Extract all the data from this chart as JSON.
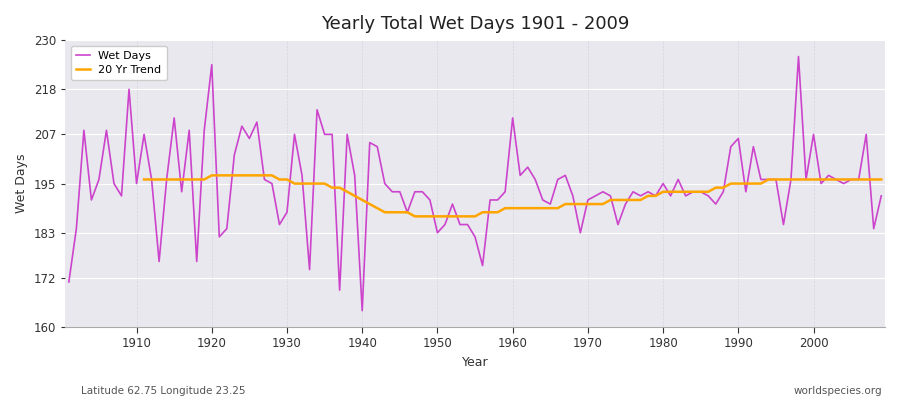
{
  "title": "Yearly Total Wet Days 1901 - 2009",
  "xlabel": "Year",
  "ylabel": "Wet Days",
  "footnote_left": "Latitude 62.75 Longitude 23.25",
  "footnote_right": "worldspecies.org",
  "ylim": [
    160,
    230
  ],
  "yticks": [
    160,
    172,
    183,
    195,
    207,
    218,
    230
  ],
  "plot_bg_color": "#e8e8ee",
  "fig_bg_color": "#ffffff",
  "line_color": "#cc44cc",
  "trend_color": "#ffa500",
  "years": [
    1901,
    1902,
    1903,
    1904,
    1905,
    1906,
    1907,
    1908,
    1909,
    1910,
    1911,
    1912,
    1913,
    1914,
    1915,
    1916,
    1917,
    1918,
    1919,
    1920,
    1921,
    1922,
    1923,
    1924,
    1925,
    1926,
    1927,
    1928,
    1929,
    1930,
    1931,
    1932,
    1933,
    1934,
    1935,
    1936,
    1937,
    1938,
    1939,
    1940,
    1941,
    1942,
    1943,
    1944,
    1945,
    1946,
    1947,
    1948,
    1949,
    1950,
    1951,
    1952,
    1953,
    1954,
    1955,
    1956,
    1957,
    1958,
    1959,
    1960,
    1961,
    1962,
    1963,
    1964,
    1965,
    1966,
    1967,
    1968,
    1969,
    1970,
    1971,
    1972,
    1973,
    1974,
    1975,
    1976,
    1977,
    1978,
    1979,
    1980,
    1981,
    1982,
    1983,
    1984,
    1985,
    1986,
    1987,
    1988,
    1989,
    1990,
    1991,
    1992,
    1993,
    1994,
    1995,
    1996,
    1997,
    1998,
    1999,
    2000,
    2001,
    2002,
    2003,
    2004,
    2005,
    2006,
    2007,
    2008,
    2009
  ],
  "wet_days": [
    171,
    184,
    208,
    191,
    196,
    208,
    195,
    192,
    218,
    195,
    207,
    196,
    176,
    196,
    211,
    193,
    208,
    176,
    208,
    224,
    182,
    184,
    202,
    209,
    206,
    210,
    196,
    195,
    185,
    188,
    207,
    197,
    174,
    213,
    207,
    207,
    169,
    207,
    197,
    164,
    205,
    204,
    195,
    193,
    193,
    188,
    193,
    193,
    191,
    183,
    185,
    190,
    185,
    185,
    182,
    175,
    191,
    191,
    193,
    211,
    197,
    199,
    196,
    191,
    190,
    196,
    197,
    192,
    183,
    191,
    192,
    193,
    192,
    185,
    190,
    193,
    192,
    193,
    192,
    195,
    192,
    196,
    192,
    193,
    193,
    192,
    190,
    193,
    204,
    206,
    193,
    204,
    196,
    196,
    196,
    185,
    196,
    226,
    196,
    207,
    195,
    197,
    196,
    195,
    196,
    196,
    207,
    184,
    192
  ],
  "trend_years": [
    1911,
    1912,
    1913,
    1914,
    1915,
    1916,
    1917,
    1918,
    1919,
    1920,
    1921,
    1922,
    1923,
    1924,
    1925,
    1926,
    1927,
    1928,
    1929,
    1930,
    1931,
    1932,
    1933,
    1934,
    1935,
    1936,
    1937,
    1938,
    1939,
    1940,
    1941,
    1942,
    1943,
    1944,
    1945,
    1946,
    1947,
    1948,
    1949,
    1950,
    1951,
    1952,
    1953,
    1954,
    1955,
    1956,
    1957,
    1958,
    1959,
    1960,
    1961,
    1962,
    1963,
    1964,
    1965,
    1966,
    1967,
    1968,
    1969,
    1970,
    1971,
    1972,
    1973,
    1974,
    1975,
    1976,
    1977,
    1978,
    1979,
    1980,
    1981,
    1982,
    1983,
    1984,
    1985,
    1986,
    1987,
    1988,
    1989,
    1990,
    1991,
    1992,
    1993,
    1994,
    1995,
    1996,
    1997,
    1998,
    1999,
    2000,
    2001,
    2002,
    2003,
    2004,
    2005,
    2006,
    2007,
    2008,
    2009
  ],
  "trend": [
    196,
    196,
    196,
    196,
    196,
    196,
    196,
    196,
    196,
    197,
    197,
    197,
    197,
    197,
    197,
    197,
    197,
    197,
    196,
    196,
    195,
    195,
    195,
    195,
    195,
    194,
    194,
    193,
    192,
    191,
    190,
    189,
    188,
    188,
    188,
    188,
    187,
    187,
    187,
    187,
    187,
    187,
    187,
    187,
    187,
    188,
    188,
    188,
    189,
    189,
    189,
    189,
    189,
    189,
    189,
    189,
    190,
    190,
    190,
    190,
    190,
    190,
    191,
    191,
    191,
    191,
    191,
    192,
    192,
    193,
    193,
    193,
    193,
    193,
    193,
    193,
    194,
    194,
    195,
    195,
    195,
    195,
    195,
    196,
    196,
    196,
    196,
    196,
    196,
    196,
    196,
    196,
    196,
    196,
    196,
    196,
    196,
    196,
    196
  ]
}
